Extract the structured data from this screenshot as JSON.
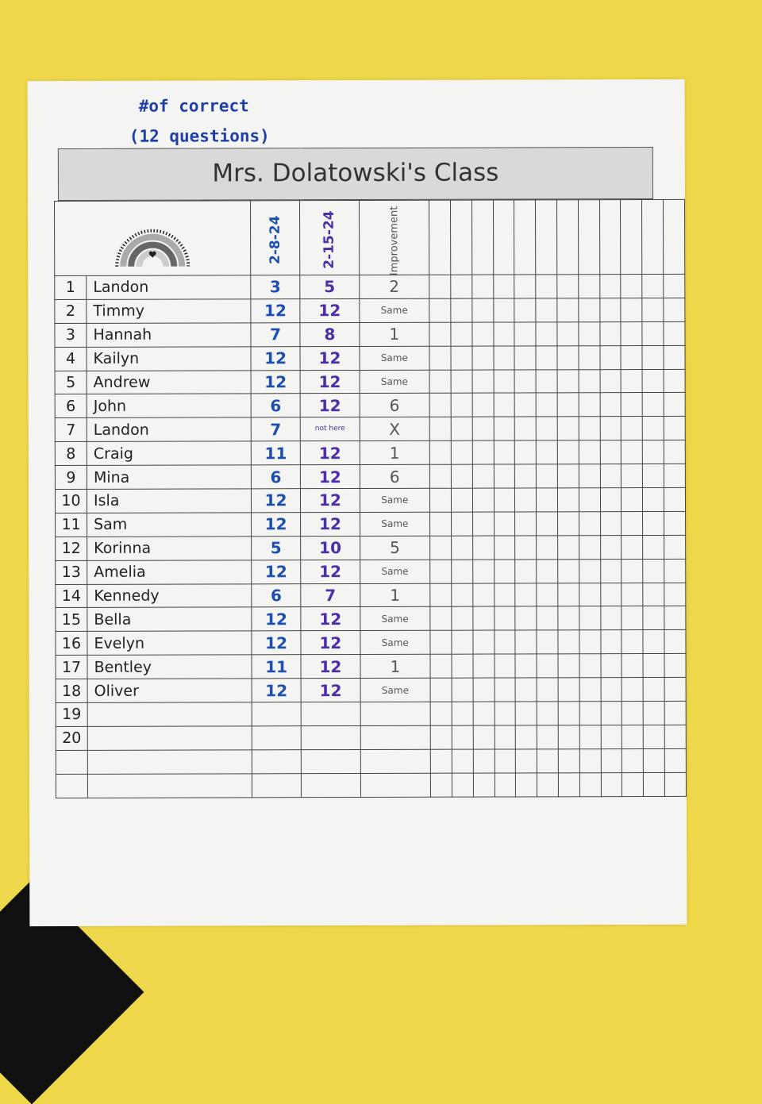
{
  "annotation": {
    "line1": "#of correct",
    "line2": "(12 questions)"
  },
  "title": "Mrs. Dolatowski's Class",
  "columns": [
    "2-8-24",
    "2-15-24",
    "Improvement"
  ],
  "empty_columns": 12,
  "rows": [
    {
      "n": "1",
      "name": "Landon",
      "a": "3",
      "b": "5",
      "c": "2"
    },
    {
      "n": "2",
      "name": "Timmy",
      "a": "12",
      "b": "12",
      "c": "Same"
    },
    {
      "n": "3",
      "name": "Hannah",
      "a": "7",
      "b": "8",
      "c": "1"
    },
    {
      "n": "4",
      "name": "Kailyn",
      "a": "12",
      "b": "12",
      "c": "Same"
    },
    {
      "n": "5",
      "name": "Andrew",
      "a": "12",
      "b": "12",
      "c": "Same"
    },
    {
      "n": "6",
      "name": "John",
      "a": "6",
      "b": "12",
      "c": "6"
    },
    {
      "n": "7",
      "name": "Landon",
      "a": "7",
      "b": "not here",
      "c": "X"
    },
    {
      "n": "8",
      "name": "Craig",
      "a": "11",
      "b": "12",
      "c": "1"
    },
    {
      "n": "9",
      "name": "Mina",
      "a": "6",
      "b": "12",
      "c": "6"
    },
    {
      "n": "10",
      "name": "Isla",
      "a": "12",
      "b": "12",
      "c": "Same"
    },
    {
      "n": "11",
      "name": "Sam",
      "a": "12",
      "b": "12",
      "c": "Same"
    },
    {
      "n": "12",
      "name": "Korinna",
      "a": "5",
      "b": "10",
      "c": "5"
    },
    {
      "n": "13",
      "name": "Amelia",
      "a": "12",
      "b": "12",
      "c": "Same"
    },
    {
      "n": "14",
      "name": "Kennedy",
      "a": "6",
      "b": "7",
      "c": "1"
    },
    {
      "n": "15",
      "name": "Bella",
      "a": "12",
      "b": "12",
      "c": "Same"
    },
    {
      "n": "16",
      "name": "Evelyn",
      "a": "12",
      "b": "12",
      "c": "Same"
    },
    {
      "n": "17",
      "name": "Bentley",
      "a": "11",
      "b": "12",
      "c": "1"
    },
    {
      "n": "18",
      "name": "Oliver",
      "a": "12",
      "b": "12",
      "c": "Same"
    },
    {
      "n": "19",
      "name": "",
      "a": "",
      "b": "",
      "c": ""
    },
    {
      "n": "20",
      "name": "",
      "a": "",
      "b": "",
      "c": ""
    },
    {
      "n": "",
      "name": "",
      "a": "",
      "b": "",
      "c": ""
    },
    {
      "n": "",
      "name": "",
      "a": "",
      "b": "",
      "c": ""
    }
  ],
  "colors": {
    "date1_ink": "#1d4fb0",
    "date2_ink": "#4b2fa6",
    "background": "#efd74a"
  }
}
